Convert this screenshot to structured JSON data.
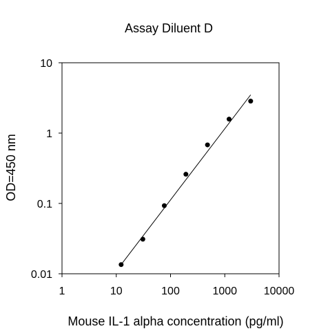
{
  "chart_data": {
    "type": "scatter",
    "title": "Assay Diluent D",
    "xlabel": "Mouse IL-1 alpha concentration (pg/ml)",
    "ylabel": "OD=450 nm",
    "xscale": "log",
    "yscale": "log",
    "xlim": [
      1,
      10000
    ],
    "ylim": [
      0.01,
      10
    ],
    "xticks": [
      1,
      10,
      100,
      1000,
      10000
    ],
    "xtick_labels": [
      "1",
      "10",
      "100",
      "1000",
      "10000"
    ],
    "yticks": [
      0.01,
      0.1,
      1,
      10
    ],
    "ytick_labels": [
      "0.01",
      "0.1",
      "1",
      "10"
    ],
    "grid": false,
    "legend": "none",
    "marker_color": "#000000",
    "line_color": "#000000",
    "series": [
      {
        "x": [
          12.3,
          30.9,
          76.8,
          192,
          480,
          1200,
          3000
        ],
        "y": [
          0.0135,
          0.031,
          0.093,
          0.26,
          0.68,
          1.58,
          2.85
        ]
      }
    ],
    "fit_line": {
      "x": [
        12.3,
        3000
      ],
      "y": [
        0.0135,
        3.5
      ]
    }
  }
}
